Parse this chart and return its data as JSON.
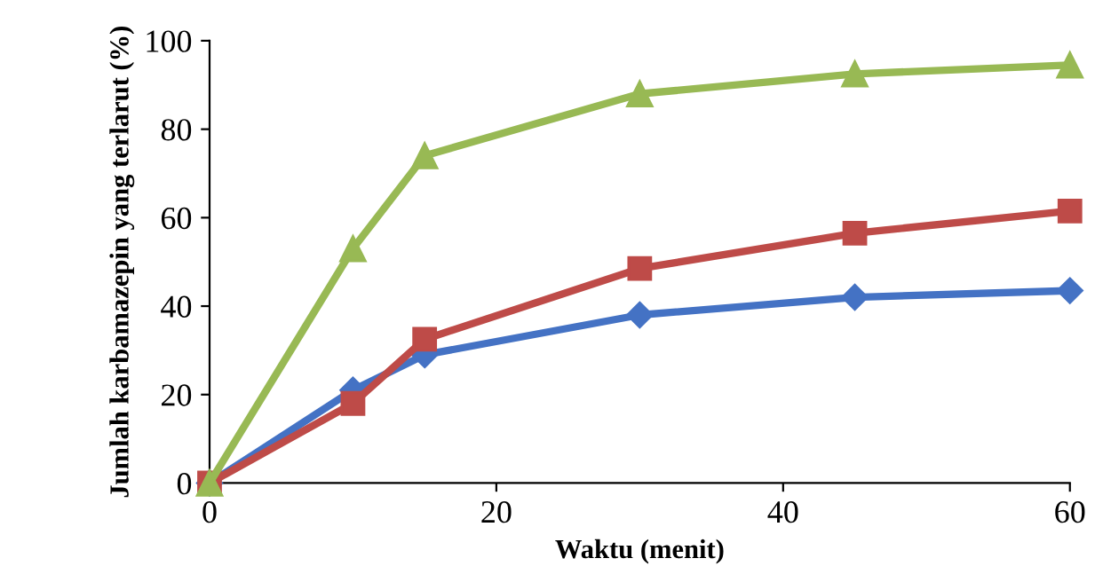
{
  "chart_data": {
    "type": "line",
    "xlabel": "Waktu (menit)",
    "ylabel": "Jumlah karbamazepin yang terlarut (%)",
    "x": [
      0,
      10,
      15,
      30,
      45,
      60
    ],
    "series": [
      {
        "color": "#4472c4",
        "marker": "diamond",
        "values": [
          0,
          21,
          29,
          38,
          42,
          43.5
        ]
      },
      {
        "color": "#be4b48",
        "marker": "square",
        "values": [
          0,
          18,
          32.5,
          48.5,
          56.5,
          61.5
        ]
      },
      {
        "color": "#98b954",
        "marker": "triangle",
        "values": [
          0,
          53,
          74,
          88,
          92.5,
          94.5
        ]
      }
    ],
    "xlim": [
      0,
      60
    ],
    "xticks": [
      0,
      20,
      40,
      60
    ],
    "ylim": [
      0,
      100
    ],
    "yticks": [
      0,
      20,
      40,
      60,
      80,
      100
    ],
    "grid": false,
    "legend": false,
    "line_style": "solid"
  }
}
